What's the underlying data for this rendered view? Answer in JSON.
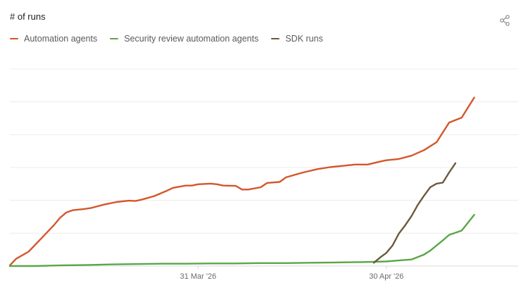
{
  "header": {
    "title": "# of runs",
    "share_icon": "share-icon"
  },
  "colors": {
    "automation": "#d4562b",
    "security": "#5aa646",
    "sdk": "#6b5a3a",
    "grid": "#ececec",
    "baseline": "#d9d9d9"
  },
  "chart_data": {
    "type": "line",
    "title": "# of runs",
    "xlabel": "",
    "ylabel": "",
    "x_axis": {
      "type": "date",
      "domain": [
        "2026-03-01",
        "2026-05-21"
      ],
      "ticks": [
        {
          "date": "2026-03-31",
          "label": "31 Mar '26"
        },
        {
          "date": "2026-04-30",
          "label": "30 Apr '26"
        }
      ]
    },
    "ylim": [
      0,
      600
    ],
    "y_gridlines": [
      100,
      200,
      300,
      400,
      500,
      600
    ],
    "grid": true,
    "legend_position": "top-left",
    "series": [
      {
        "name": "Automation agents",
        "color": "#d4562b",
        "points": [
          [
            "2026-03-01",
            2
          ],
          [
            "2026-03-02",
            22
          ],
          [
            "2026-03-04",
            44
          ],
          [
            "2026-03-06",
            84
          ],
          [
            "2026-03-08",
            124
          ],
          [
            "2026-03-09",
            147
          ],
          [
            "2026-03-10",
            163
          ],
          [
            "2026-03-11",
            170
          ],
          [
            "2026-03-13",
            174
          ],
          [
            "2026-03-14",
            177
          ],
          [
            "2026-03-16",
            187
          ],
          [
            "2026-03-18",
            195
          ],
          [
            "2026-03-20",
            199
          ],
          [
            "2026-03-21",
            198
          ],
          [
            "2026-03-22",
            202
          ],
          [
            "2026-03-24",
            213
          ],
          [
            "2026-03-26",
            229
          ],
          [
            "2026-03-27",
            238
          ],
          [
            "2026-03-29",
            245
          ],
          [
            "2026-03-30",
            245
          ],
          [
            "2026-03-31",
            249
          ],
          [
            "2026-04-02",
            251
          ],
          [
            "2026-04-03",
            249
          ],
          [
            "2026-04-04",
            245
          ],
          [
            "2026-04-06",
            244
          ],
          [
            "2026-04-07",
            233
          ],
          [
            "2026-04-08",
            233
          ],
          [
            "2026-04-10",
            240
          ],
          [
            "2026-04-11",
            253
          ],
          [
            "2026-04-13",
            256
          ],
          [
            "2026-04-14",
            270
          ],
          [
            "2026-04-16",
            281
          ],
          [
            "2026-04-17",
            286
          ],
          [
            "2026-04-19",
            295
          ],
          [
            "2026-04-21",
            301
          ],
          [
            "2026-04-23",
            305
          ],
          [
            "2026-04-25",
            309
          ],
          [
            "2026-04-27",
            309
          ],
          [
            "2026-04-29",
            318
          ],
          [
            "2026-04-30",
            322
          ],
          [
            "2026-05-02",
            326
          ],
          [
            "2026-05-04",
            336
          ],
          [
            "2026-05-06",
            353
          ],
          [
            "2026-05-08",
            377
          ],
          [
            "2026-05-10",
            437
          ],
          [
            "2026-05-12",
            452
          ],
          [
            "2026-05-14",
            513
          ]
        ]
      },
      {
        "name": "Security review automation agents",
        "color": "#5aa646",
        "points": [
          [
            "2026-03-01",
            0
          ],
          [
            "2026-03-05",
            0
          ],
          [
            "2026-03-09",
            2
          ],
          [
            "2026-03-13",
            3
          ],
          [
            "2026-03-17",
            5
          ],
          [
            "2026-03-21",
            6
          ],
          [
            "2026-03-25",
            7
          ],
          [
            "2026-03-29",
            7
          ],
          [
            "2026-04-02",
            8
          ],
          [
            "2026-04-06",
            8
          ],
          [
            "2026-04-10",
            9
          ],
          [
            "2026-04-14",
            9
          ],
          [
            "2026-04-18",
            10
          ],
          [
            "2026-04-22",
            11
          ],
          [
            "2026-04-26",
            12
          ],
          [
            "2026-04-30",
            14
          ],
          [
            "2026-05-02",
            17
          ],
          [
            "2026-05-04",
            20
          ],
          [
            "2026-05-06",
            35
          ],
          [
            "2026-05-07",
            47
          ],
          [
            "2026-05-09",
            78
          ],
          [
            "2026-05-10",
            95
          ],
          [
            "2026-05-12",
            108
          ],
          [
            "2026-05-14",
            156
          ]
        ]
      },
      {
        "name": "SDK runs",
        "color": "#6b5a3a",
        "points": [
          [
            "2026-04-28",
            10
          ],
          [
            "2026-04-29",
            26
          ],
          [
            "2026-04-30",
            40
          ],
          [
            "2026-05-01",
            63
          ],
          [
            "2026-05-02",
            99
          ],
          [
            "2026-05-03",
            124
          ],
          [
            "2026-05-04",
            152
          ],
          [
            "2026-05-05",
            186
          ],
          [
            "2026-05-06",
            214
          ],
          [
            "2026-05-07",
            240
          ],
          [
            "2026-05-08",
            251
          ],
          [
            "2026-05-09",
            254
          ],
          [
            "2026-05-10",
            285
          ],
          [
            "2026-05-11",
            313
          ]
        ]
      }
    ]
  }
}
